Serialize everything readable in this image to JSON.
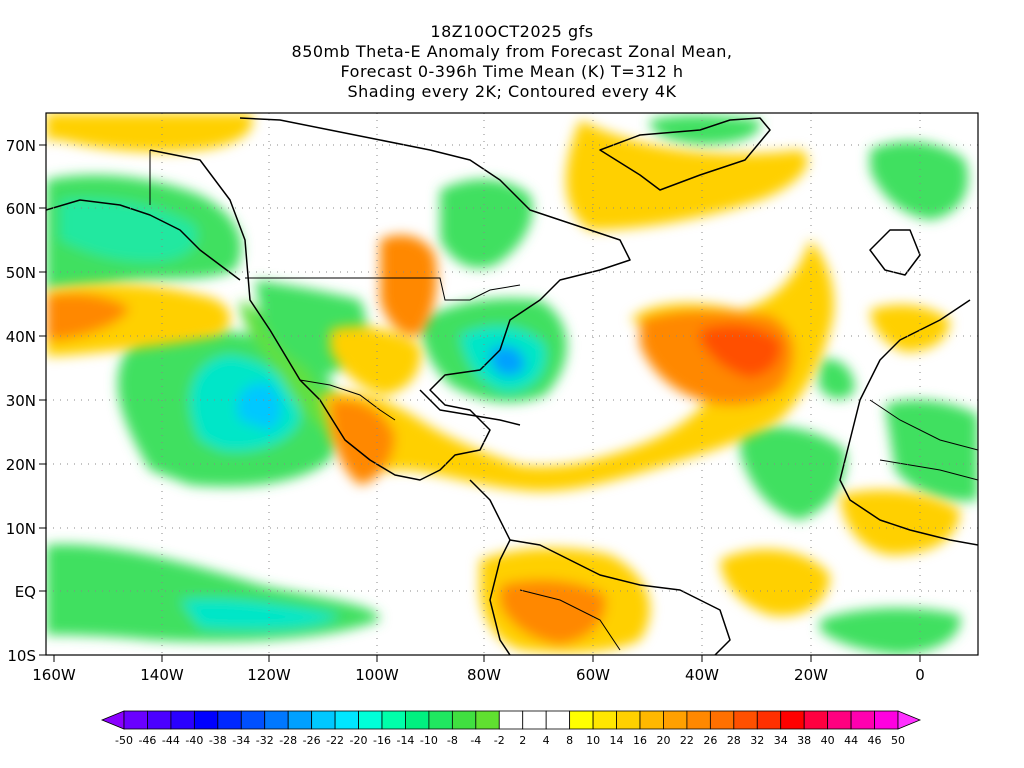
{
  "header": {
    "line1": "18Z10OCT2025 gfs",
    "line2": "850mb Theta-E Anomaly from Forecast Zonal Mean,",
    "line3": "Forecast 0-396h Time Mean (K) T=312 h",
    "line4": "Shading every 2K; Contoured every 4K"
  },
  "map": {
    "lon_range": [
      -160,
      10
    ],
    "lat_range": [
      -10,
      75
    ],
    "lon_ticks": [
      "160W",
      "140W",
      "120W",
      "100W",
      "80W",
      "60W",
      "40W",
      "20W",
      "0"
    ],
    "lat_ticks": [
      "10S",
      "EQ",
      "10N",
      "20N",
      "30N",
      "40N",
      "50N",
      "60N",
      "70N"
    ],
    "grid": "dotted",
    "features": [
      {
        "name": "warm anomaly plume central-east Atlantic",
        "category": "positive"
      },
      {
        "name": "warm anomaly plume Gulf of Mexico to Mexico",
        "category": "positive"
      },
      {
        "name": "warm anomaly northeast Pacific",
        "category": "positive"
      },
      {
        "name": "warm anomaly South America",
        "category": "positive"
      },
      {
        "name": "cold anomaly eastern United States",
        "category": "negative"
      },
      {
        "name": "cold anomaly subtropical east Pacific",
        "category": "negative"
      },
      {
        "name": "cold anomaly Gulf of Alaska",
        "category": "negative"
      }
    ]
  },
  "colorbar": {
    "labels": [
      "-50",
      "-46",
      "-44",
      "-40",
      "-38",
      "-34",
      "-32",
      "-28",
      "-26",
      "-22",
      "-20",
      "-16",
      "-14",
      "-10",
      "-8",
      "-4",
      "-2",
      "2",
      "4",
      "8",
      "10",
      "14",
      "16",
      "20",
      "22",
      "26",
      "28",
      "32",
      "34",
      "38",
      "40",
      "44",
      "46",
      "50"
    ],
    "colors": [
      "#8a00ff",
      "#6a00ff",
      "#4b00ff",
      "#2a00ff",
      "#0000ff",
      "#0028ff",
      "#0050ff",
      "#0078ff",
      "#00a0ff",
      "#00c8ff",
      "#00e6ff",
      "#00ffd8",
      "#00ffaa",
      "#00f080",
      "#20e860",
      "#40e040",
      "#60e030",
      "#ffffff",
      "#ffffff",
      "#ffffff",
      "#ffff00",
      "#ffe600",
      "#ffd000",
      "#ffb800",
      "#ffa000",
      "#ff8800",
      "#ff7000",
      "#ff5000",
      "#ff3000",
      "#ff0000",
      "#ff0040",
      "#ff0080",
      "#ff00b0",
      "#ff00e0",
      "#ff30ff"
    ]
  }
}
